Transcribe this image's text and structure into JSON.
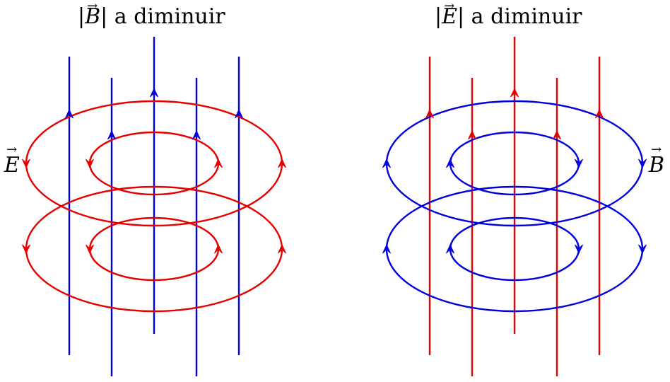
{
  "panels": [
    {
      "title_prefix": "|",
      "title_symbol": "B",
      "title_suffix": "| a diminuir",
      "side_label": "E",
      "line_color": "#0000dd",
      "loop_color": "#e60000"
    },
    {
      "title_prefix": "|",
      "title_symbol": "E",
      "title_suffix": "| a diminuir",
      "side_label": "B",
      "line_color": "#e60000",
      "loop_color": "#0000dd"
    }
  ]
}
